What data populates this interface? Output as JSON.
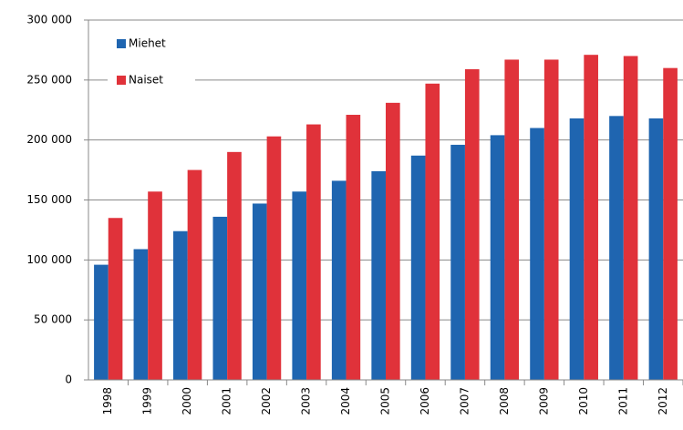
{
  "chart_data": {
    "type": "bar",
    "categories": [
      "1998",
      "1999",
      "2000",
      "2001",
      "2002",
      "2003",
      "2004",
      "2005",
      "2006",
      "2007",
      "2008",
      "2009",
      "2010",
      "2011",
      "2012"
    ],
    "series": [
      {
        "name": "Miehet",
        "color": "#1f65b0",
        "values": [
          96000,
          109000,
          124000,
          136000,
          147000,
          157000,
          166000,
          174000,
          187000,
          196000,
          204000,
          210000,
          218000,
          220000,
          218000
        ]
      },
      {
        "name": "Naiset",
        "color": "#e0323a",
        "values": [
          135000,
          157000,
          175000,
          190000,
          203000,
          213000,
          221000,
          231000,
          247000,
          259000,
          267000,
          267000,
          271000,
          270000,
          260000
        ]
      }
    ],
    "ylim": [
      0,
      300000
    ],
    "yticks": [
      0,
      {
        "value": 50000,
        "label": "50 000"
      },
      {
        "value": 100000,
        "label": "100 000"
      },
      {
        "value": 150000,
        "label": "150 000"
      },
      {
        "value": 200000,
        "label": "200 000"
      },
      {
        "value": 250000,
        "label": "250 000"
      },
      {
        "value": 300000,
        "label": "300 000"
      }
    ],
    "grid": true,
    "legend": "top-left"
  }
}
